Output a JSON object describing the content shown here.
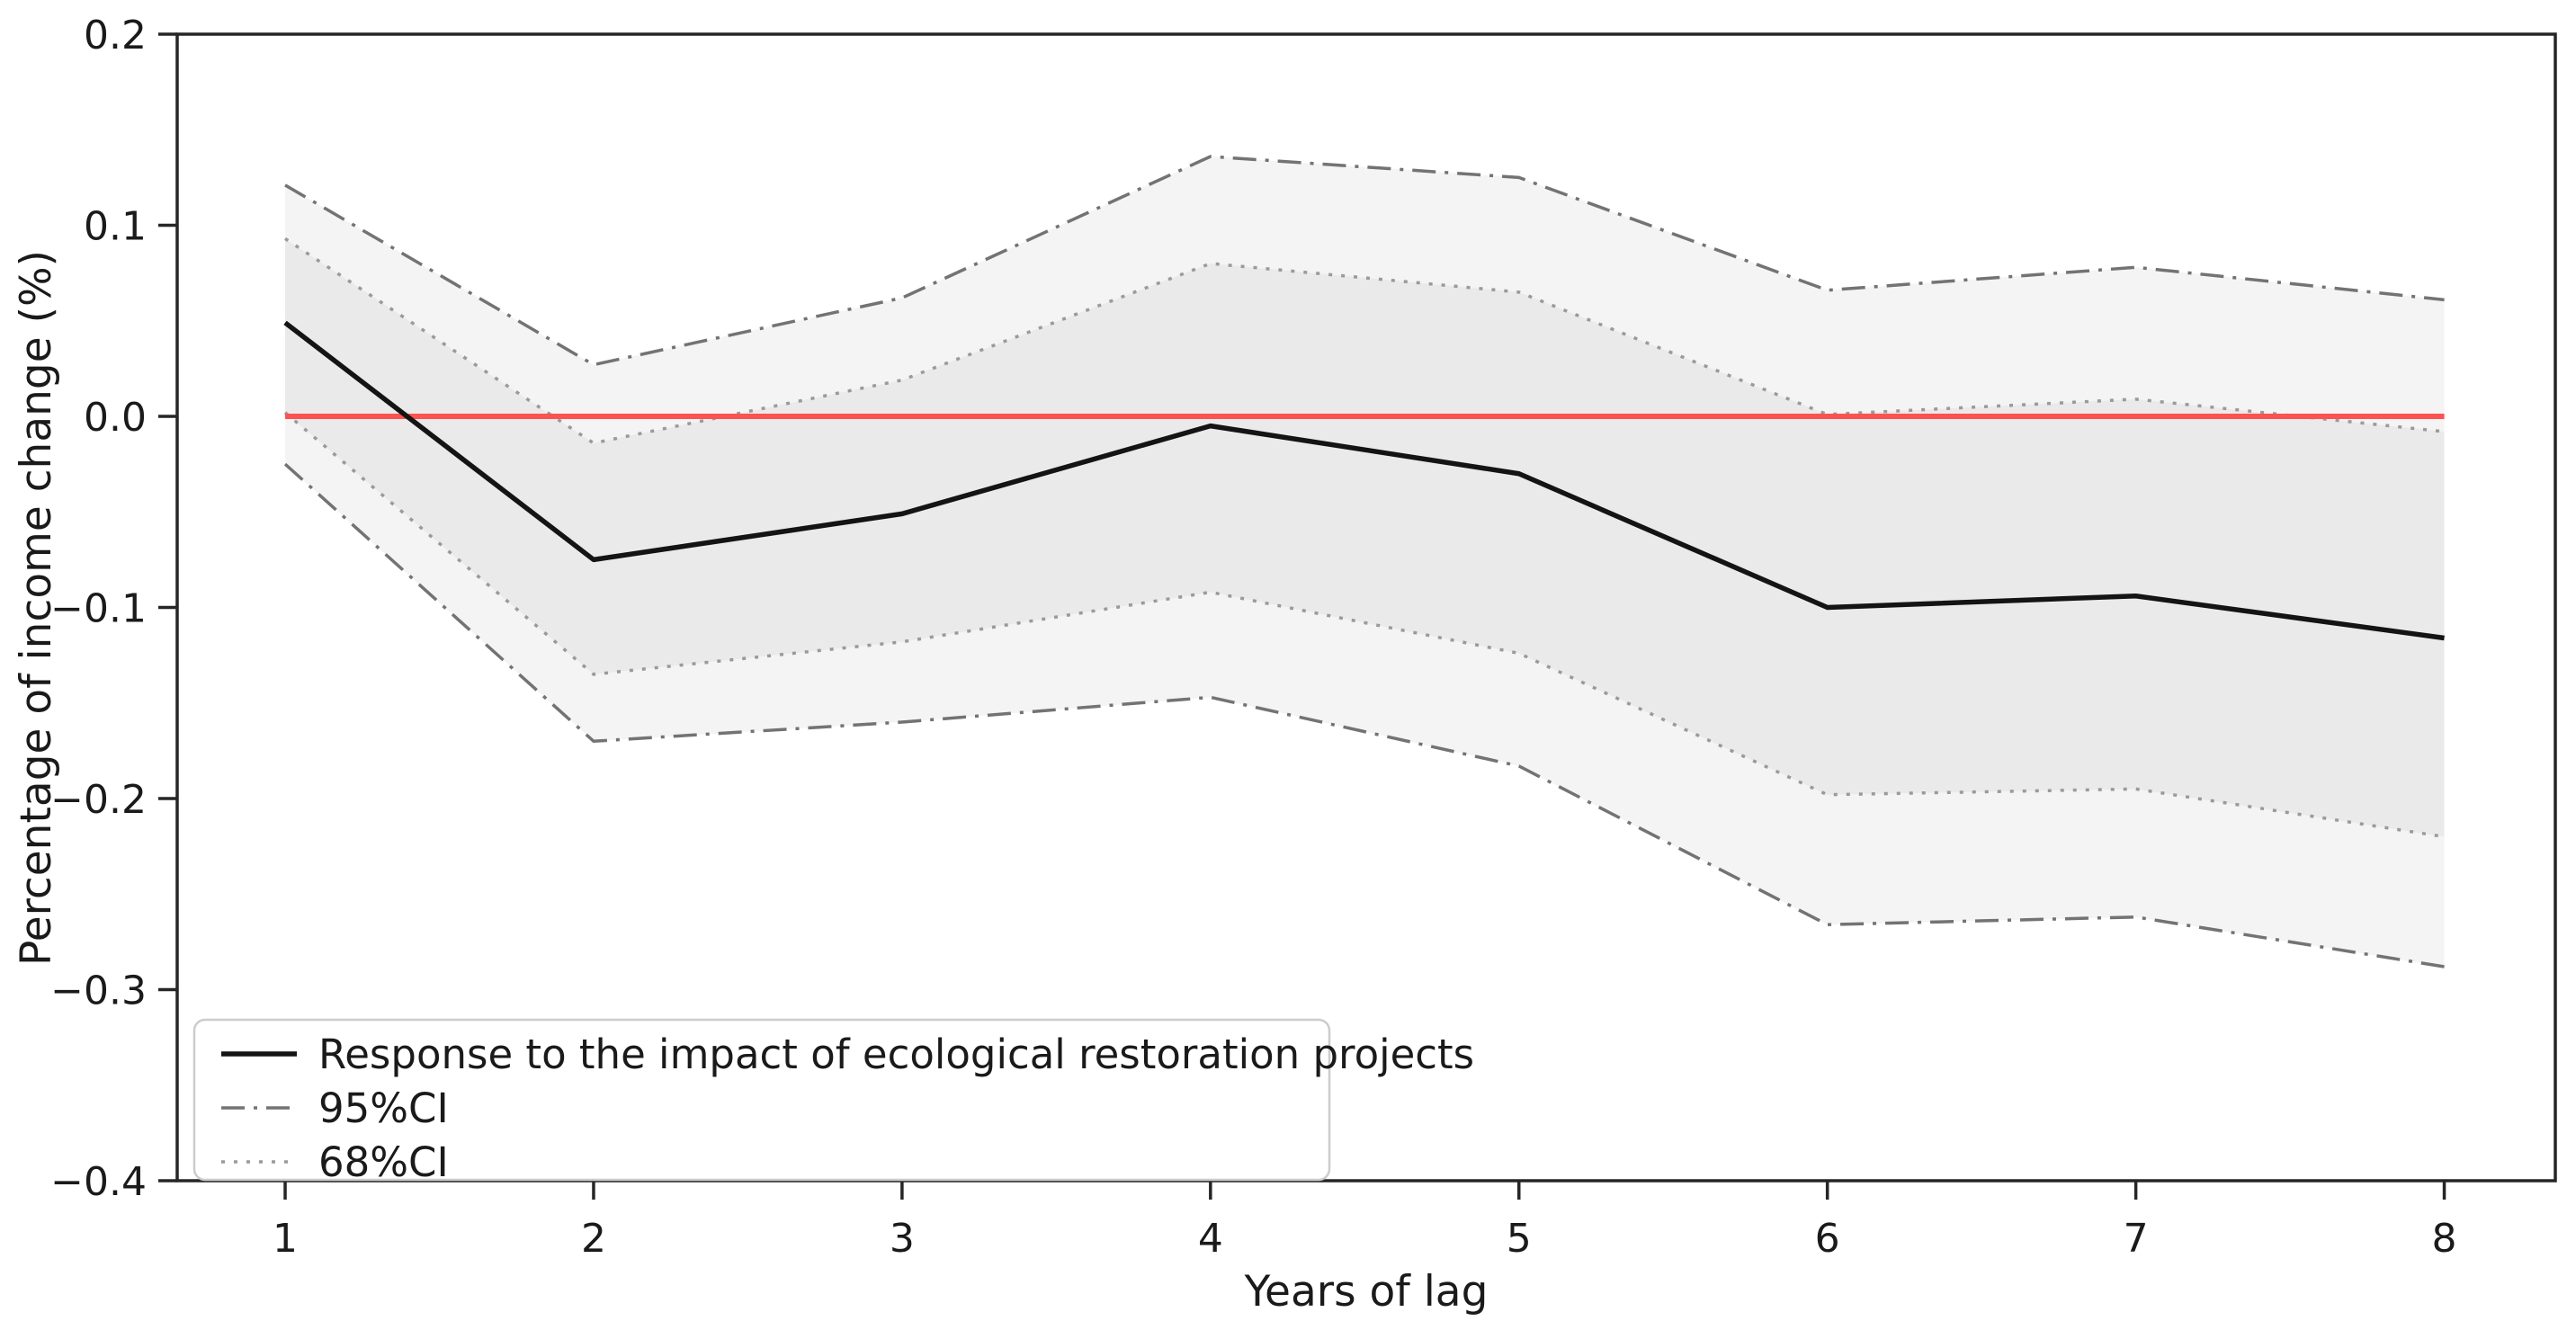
{
  "chart_data": {
    "type": "line",
    "title": "",
    "xlabel": "Years of lag",
    "ylabel": "Percentage of income change (%)",
    "x": [
      1,
      2,
      3,
      4,
      5,
      6,
      7,
      8
    ],
    "x_tick_labels": [
      "1",
      "2",
      "3",
      "4",
      "5",
      "6",
      "7",
      "8"
    ],
    "y_tick_values": [
      0.2,
      0.1,
      0.0,
      -0.1,
      -0.2,
      -0.3,
      -0.4
    ],
    "y_tick_labels": [
      "0.2",
      "0.1",
      "0.0",
      "−0.1",
      "−0.2",
      "−0.3",
      "−0.4"
    ],
    "xlim": [
      0.65,
      8.36
    ],
    "ylim": [
      -0.4,
      0.2
    ],
    "grid": false,
    "legend_position": "lower left",
    "background_color": "#ffffff",
    "frame_color": "#262626",
    "series": [
      {
        "name": "Response to the impact of ecological restoration projects",
        "type": "line",
        "style": "solid",
        "color": "#141414",
        "values": [
          0.049,
          -0.075,
          -0.051,
          -0.005,
          -0.03,
          -0.1,
          -0.094,
          -0.116
        ]
      },
      {
        "name": "95%CI",
        "type": "band",
        "style": "dashdot",
        "line_color": "#737373",
        "fill_color": "#f4f4f4",
        "upper": [
          0.121,
          0.027,
          0.062,
          0.136,
          0.125,
          0.066,
          0.078,
          0.061
        ],
        "lower": [
          -0.025,
          -0.17,
          -0.16,
          -0.147,
          -0.183,
          -0.266,
          -0.262,
          -0.288
        ]
      },
      {
        "name": "68%CI",
        "type": "band",
        "style": "dotted",
        "line_color": "#9a9a9a",
        "fill_color": "#eaeaea",
        "upper": [
          0.093,
          -0.014,
          0.019,
          0.08,
          0.065,
          0.001,
          0.009,
          -0.008
        ],
        "lower": [
          0.002,
          -0.135,
          -0.118,
          -0.092,
          -0.124,
          -0.198,
          -0.195,
          -0.22
        ]
      }
    ],
    "zero_line": {
      "value": 0.0,
      "color": "#fc5252"
    }
  }
}
